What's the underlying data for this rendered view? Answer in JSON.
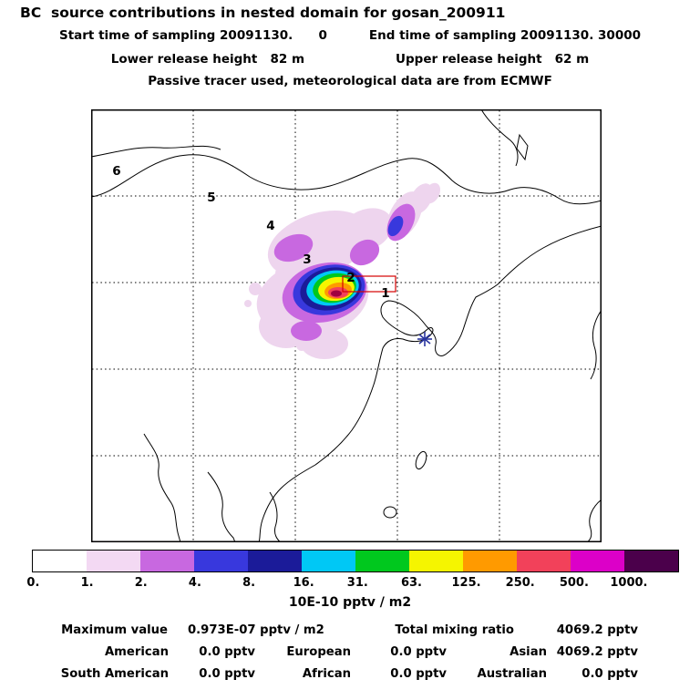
{
  "header": {
    "title": "BC  source contributions in nested domain for gosan_200911",
    "start_time": "Start time of sampling 20091130.      0",
    "end_time": "End time of sampling 20091130. 30000",
    "lower_release": "Lower release height   82 m",
    "upper_release": "Upper release height   62 m",
    "tracer_note": "Passive tracer used, meteorological data are from ECMWF"
  },
  "chart_data": {
    "type": "heatmap",
    "title": "BC source contributions in nested domain for gosan_200911",
    "map_region": "East Asia nested model domain (China, Mongolia, Korea, surrounding seas)",
    "gridlines": {
      "style": "dotted",
      "columns": 5,
      "rows": 5
    },
    "nested_domain_labels": [
      "6",
      "5",
      "4",
      "3",
      "2",
      "1"
    ],
    "receptor_station": {
      "name": "gosan",
      "marker": "asterisk",
      "location": "south of Korean peninsula (Jeju)"
    },
    "plume": {
      "description": "Source-contribution plume centered over the Beijing/Hebei region of northeastern China; core values in the 250-1000 range (red/orange), decreasing outward through yellow, green, cyan, blue and violet rings to a faint pale-violet haze; a violet filament extends northeast toward Manchuria and scattered faint patches lie to the west and southwest.",
      "core_level_range": "250-1000 10E-10 pptv / m2",
      "max_value": "0.973E-07 pptv / m2"
    },
    "colorbar": {
      "ticks": [
        "0.",
        "1.",
        "2.",
        "4.",
        "8.",
        "16.",
        "31.",
        "63.",
        "125.",
        "250.",
        "500.",
        "1000."
      ],
      "boundaries": [
        0,
        1,
        2,
        4,
        8,
        16,
        31,
        63,
        125,
        250,
        500,
        1000
      ],
      "last_cell_meaning": ">1000",
      "colors": [
        "#ffffff",
        "#f3d9f3",
        "#c868e0",
        "#3838dd",
        "#1b1b99",
        "#00c8f5",
        "#00c81e",
        "#f5f500",
        "#ff9a00",
        "#f2415a",
        "#dc00c8",
        "#4b004b"
      ],
      "units": "10E-10 pptv / m2"
    }
  },
  "stats": {
    "max_label": "Maximum value",
    "max_value": "0.973E-07 pptv / m2",
    "total_label": "Total mixing ratio",
    "total_value": "4069.2 pptv",
    "continents": [
      {
        "label": "American",
        "value": "0.0 pptv"
      },
      {
        "label": "European",
        "value": "0.0 pptv"
      },
      {
        "label": "Asian",
        "value": "4069.2 pptv"
      },
      {
        "label": "South American",
        "value": "0.0 pptv"
      },
      {
        "label": "African",
        "value": "0.0 pptv"
      },
      {
        "label": "Australian",
        "value": "0.0 pptv"
      }
    ]
  }
}
